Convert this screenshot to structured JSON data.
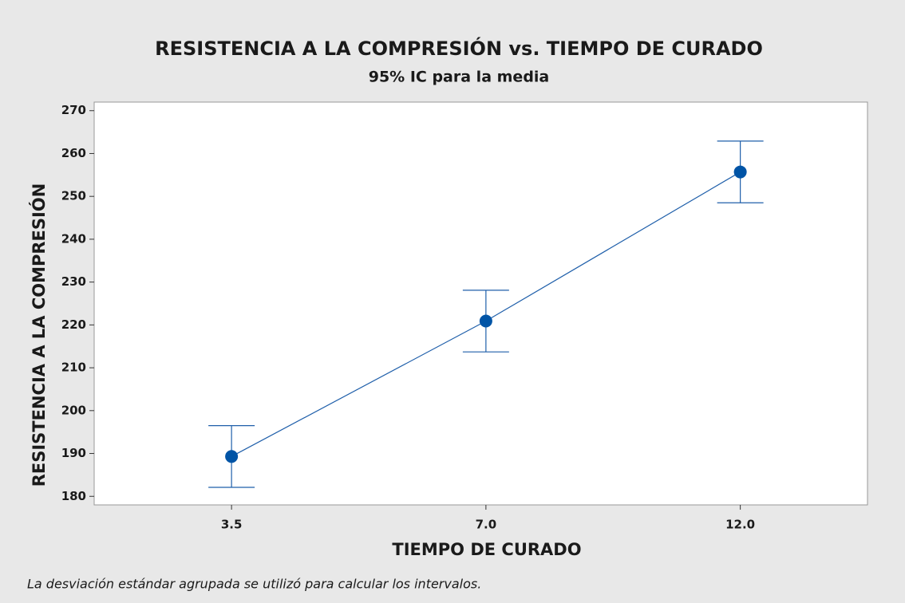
{
  "chart_data": {
    "type": "interval",
    "title": "RESISTENCIA A LA COMPRESIÓN vs. TIEMPO DE CURADO",
    "subtitle": "95% IC para la media",
    "x_label": "TIEMPO DE CURADO",
    "y_label": "RESISTENCIA A LA COMPRESIÓN",
    "note": "La desviación estándar agrupada se utilizó para calcular los intervalos.",
    "categories": [
      "3.5",
      "7.0",
      "12.0"
    ],
    "values": [
      189.3,
      220.9,
      255.7
    ],
    "errors": [
      7.2,
      7.2,
      7.2
    ],
    "color": "#0054a6",
    "ylim": [
      178,
      272
    ],
    "yticks": [
      180,
      190,
      200,
      210,
      220,
      230,
      240,
      250,
      260,
      270
    ]
  }
}
